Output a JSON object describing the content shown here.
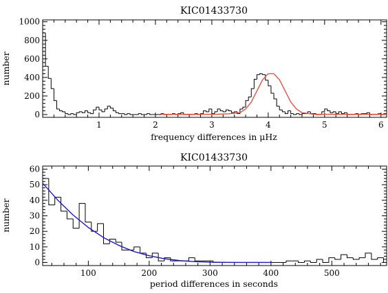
{
  "chart_data": [
    {
      "type": "histogram",
      "title": "KIC01433730",
      "xlabel": "frequency differences in μHz",
      "ylabel": "number",
      "xlim": [
        0.0,
        6.1
      ],
      "ylim": [
        -30,
        1020
      ],
      "xticks": [
        "1",
        "2",
        "3",
        "4",
        "5",
        "6"
      ],
      "yticks": [
        "0",
        "200",
        "400",
        "600",
        "800",
        "1000"
      ],
      "colors": {
        "histogram": "#000000",
        "fit": "#e8503a"
      },
      "histogram": {
        "bin_width": 0.05,
        "x": [
          0.0,
          0.05,
          0.1,
          0.15,
          0.2,
          0.25,
          0.3,
          0.35,
          0.4,
          0.45,
          0.5,
          0.55,
          0.6,
          0.65,
          0.7,
          0.75,
          0.8,
          0.85,
          0.9,
          0.95,
          1.0,
          1.05,
          1.1,
          1.15,
          1.2,
          1.25,
          1.3,
          1.35,
          1.4,
          1.45,
          1.5,
          1.55,
          1.6,
          1.65,
          1.7,
          1.75,
          1.8,
          1.85,
          1.9,
          1.95,
          2.0,
          2.05,
          2.1,
          2.15,
          2.2,
          2.25,
          2.3,
          2.35,
          2.4,
          2.45,
          2.5,
          2.55,
          2.6,
          2.65,
          2.7,
          2.75,
          2.8,
          2.85,
          2.9,
          2.95,
          3.0,
          3.05,
          3.1,
          3.15,
          3.2,
          3.25,
          3.3,
          3.35,
          3.4,
          3.45,
          3.5,
          3.55,
          3.6,
          3.65,
          3.7,
          3.75,
          3.8,
          3.85,
          3.9,
          3.95,
          4.0,
          4.05,
          4.1,
          4.15,
          4.2,
          4.25,
          4.3,
          4.35,
          4.4,
          4.45,
          4.5,
          4.55,
          4.6,
          4.65,
          4.7,
          4.75,
          4.8,
          4.85,
          4.9,
          4.95,
          5.0,
          5.05,
          5.1,
          5.15,
          5.2,
          5.25,
          5.3,
          5.35,
          5.4,
          5.45,
          5.5,
          5.55,
          5.6,
          5.65,
          5.7,
          5.75,
          5.8,
          5.85,
          5.9,
          5.95,
          6.0,
          6.05
        ],
        "y": [
          880,
          520,
          390,
          280,
          150,
          60,
          40,
          30,
          10,
          0,
          10,
          0,
          20,
          30,
          20,
          40,
          20,
          10,
          50,
          80,
          50,
          30,
          60,
          90,
          70,
          40,
          20,
          10,
          10,
          0,
          10,
          0,
          0,
          0,
          10,
          0,
          0,
          10,
          0,
          0,
          0,
          0,
          10,
          0,
          0,
          0,
          10,
          0,
          10,
          20,
          0,
          0,
          0,
          0,
          10,
          0,
          10,
          40,
          30,
          60,
          10,
          30,
          60,
          40,
          30,
          50,
          40,
          20,
          30,
          10,
          60,
          80,
          150,
          190,
          280,
          380,
          430,
          440,
          430,
          370,
          310,
          230,
          170,
          90,
          50,
          30,
          10,
          40,
          10,
          0,
          10,
          0,
          10,
          10,
          30,
          10,
          10,
          0,
          0,
          30,
          60,
          40,
          20,
          30,
          10,
          30,
          10,
          20,
          0,
          0,
          0,
          10,
          0,
          10,
          10,
          20,
          0,
          0,
          0,
          10,
          0,
          10
        ]
      },
      "fit": {
        "x": [
          2.1,
          2.3,
          2.5,
          2.7,
          2.9,
          3.1,
          3.3,
          3.5,
          3.6,
          3.7,
          3.8,
          3.9,
          4.0,
          4.1,
          4.2,
          4.3,
          4.4,
          4.5,
          4.6,
          4.8,
          5.0,
          5.3,
          5.6,
          5.9,
          6.1
        ],
        "y": [
          3,
          3,
          3,
          3,
          3,
          4,
          8,
          20,
          60,
          135,
          255,
          375,
          440,
          440,
          375,
          255,
          135,
          60,
          20,
          4,
          3,
          3,
          3,
          3,
          3
        ]
      }
    },
    {
      "type": "histogram",
      "title": "KIC01433730",
      "xlabel": "period differences in seconds",
      "ylabel": "number",
      "xlim": [
        25,
        590
      ],
      "ylim": [
        -2,
        62
      ],
      "xticks": [
        "100",
        "200",
        "300",
        "400",
        "500"
      ],
      "yticks": [
        "0",
        "10",
        "20",
        "30",
        "40",
        "50",
        "60"
      ],
      "colors": {
        "histogram": "#000000",
        "fit": "#1818d8"
      },
      "histogram": {
        "bin_width": 10,
        "x": [
          25,
          35,
          45,
          55,
          65,
          75,
          85,
          95,
          105,
          115,
          125,
          135,
          145,
          155,
          165,
          175,
          185,
          195,
          205,
          215,
          225,
          235,
          245,
          255,
          265,
          275,
          285,
          295,
          305,
          315,
          325,
          335,
          345,
          355,
          365,
          375,
          385,
          395,
          405,
          415,
          425,
          435,
          445,
          455,
          465,
          475,
          485,
          495,
          505,
          515,
          525,
          535,
          545,
          555,
          565,
          575,
          585
        ],
        "y": [
          54,
          37,
          42,
          33,
          28,
          22,
          38,
          26,
          20,
          25,
          12,
          15,
          13,
          8,
          8,
          10,
          6,
          3,
          6,
          1,
          3,
          1,
          1,
          1,
          3,
          1,
          1,
          1,
          0,
          0,
          0,
          0,
          0,
          0,
          0,
          0,
          0,
          0,
          0,
          0,
          1,
          1,
          0,
          1,
          0,
          2,
          0,
          3,
          2,
          5,
          3,
          2,
          3,
          6,
          2,
          3,
          0
        ]
      },
      "fit": {
        "x": [
          25,
          50,
          75,
          100,
          125,
          150,
          175,
          200,
          225,
          250,
          275,
          300,
          325,
          350,
          375,
          400
        ],
        "y": [
          51,
          40,
          30.5,
          22.5,
          16,
          11,
          7,
          4.3,
          2.4,
          1.2,
          0.5,
          0.2,
          0.05,
          0,
          0,
          0
        ]
      }
    }
  ]
}
